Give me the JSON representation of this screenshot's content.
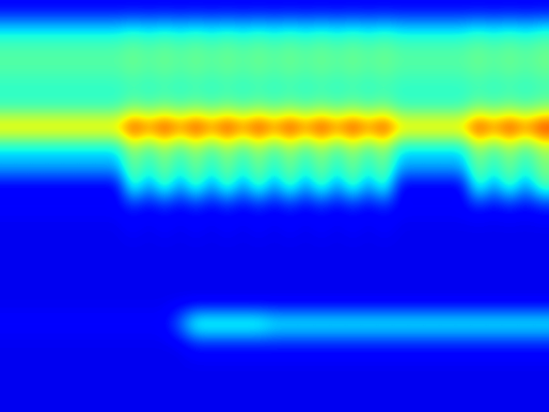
{
  "chart_data": {
    "type": "heatmap",
    "color": "jet",
    "tick_labels": false,
    "value_range": [
      0,
      1
    ],
    "cells": [
      [
        0.12,
        0.12,
        0.12,
        0.12,
        0.12,
        0.12,
        0.12,
        0.12,
        0.12,
        0.12,
        0.12,
        0.12,
        0.12,
        0.12,
        0.12,
        0.12,
        0.12,
        0.12,
        0.12,
        0.12,
        0.12,
        0.12,
        0.12,
        0.12,
        0.12,
        0.12,
        0.12,
        0.12,
        0.12,
        0.12,
        0.12,
        0.12,
        0.12,
        0.12,
        0.12
      ],
      [
        0.35,
        0.35,
        0.35,
        0.35,
        0.35,
        0.35,
        0.35,
        0.35,
        0.38,
        0.35,
        0.38,
        0.35,
        0.38,
        0.35,
        0.38,
        0.35,
        0.38,
        0.35,
        0.38,
        0.35,
        0.38,
        0.35,
        0.38,
        0.35,
        0.38,
        0.35,
        0.35,
        0.35,
        0.35,
        0.35,
        0.38,
        0.35,
        0.38,
        0.35,
        0.38
      ],
      [
        0.45,
        0.45,
        0.45,
        0.45,
        0.45,
        0.45,
        0.45,
        0.45,
        0.48,
        0.45,
        0.48,
        0.45,
        0.48,
        0.45,
        0.48,
        0.45,
        0.48,
        0.45,
        0.48,
        0.45,
        0.48,
        0.45,
        0.48,
        0.45,
        0.48,
        0.45,
        0.45,
        0.45,
        0.45,
        0.45,
        0.48,
        0.45,
        0.48,
        0.45,
        0.48
      ],
      [
        0.45,
        0.45,
        0.45,
        0.45,
        0.45,
        0.45,
        0.45,
        0.45,
        0.48,
        0.45,
        0.48,
        0.45,
        0.48,
        0.45,
        0.48,
        0.45,
        0.48,
        0.45,
        0.48,
        0.45,
        0.48,
        0.45,
        0.48,
        0.45,
        0.48,
        0.45,
        0.45,
        0.45,
        0.45,
        0.45,
        0.48,
        0.45,
        0.48,
        0.45,
        0.48
      ],
      [
        0.4,
        0.4,
        0.4,
        0.4,
        0.4,
        0.4,
        0.4,
        0.4,
        0.42,
        0.4,
        0.42,
        0.4,
        0.42,
        0.4,
        0.42,
        0.4,
        0.42,
        0.4,
        0.42,
        0.4,
        0.42,
        0.4,
        0.42,
        0.4,
        0.42,
        0.4,
        0.4,
        0.4,
        0.4,
        0.4,
        0.42,
        0.4,
        0.42,
        0.4,
        0.42
      ],
      [
        0.42,
        0.42,
        0.42,
        0.42,
        0.42,
        0.42,
        0.42,
        0.42,
        0.5,
        0.45,
        0.5,
        0.45,
        0.5,
        0.45,
        0.5,
        0.45,
        0.5,
        0.45,
        0.5,
        0.45,
        0.5,
        0.45,
        0.5,
        0.45,
        0.5,
        0.42,
        0.42,
        0.42,
        0.42,
        0.42,
        0.5,
        0.45,
        0.5,
        0.45,
        0.5
      ],
      [
        0.72,
        0.72,
        0.72,
        0.72,
        0.72,
        0.72,
        0.72,
        0.72,
        0.92,
        0.8,
        0.92,
        0.8,
        0.92,
        0.8,
        0.92,
        0.8,
        0.92,
        0.8,
        0.92,
        0.8,
        0.92,
        0.8,
        0.92,
        0.8,
        0.92,
        0.72,
        0.72,
        0.72,
        0.72,
        0.72,
        0.92,
        0.8,
        0.92,
        0.8,
        0.92
      ],
      [
        0.35,
        0.35,
        0.35,
        0.35,
        0.35,
        0.35,
        0.35,
        0.35,
        0.55,
        0.42,
        0.55,
        0.42,
        0.55,
        0.42,
        0.55,
        0.42,
        0.55,
        0.42,
        0.55,
        0.42,
        0.55,
        0.42,
        0.55,
        0.42,
        0.55,
        0.35,
        0.35,
        0.35,
        0.35,
        0.35,
        0.55,
        0.42,
        0.55,
        0.42,
        0.55
      ],
      [
        0.3,
        0.3,
        0.3,
        0.3,
        0.3,
        0.3,
        0.3,
        0.3,
        0.5,
        0.38,
        0.5,
        0.38,
        0.5,
        0.38,
        0.5,
        0.38,
        0.5,
        0.38,
        0.5,
        0.38,
        0.5,
        0.38,
        0.5,
        0.38,
        0.5,
        0.3,
        0.3,
        0.3,
        0.3,
        0.3,
        0.5,
        0.38,
        0.5,
        0.38,
        0.5
      ],
      [
        0.1,
        0.1,
        0.1,
        0.1,
        0.1,
        0.1,
        0.1,
        0.1,
        0.45,
        0.25,
        0.45,
        0.25,
        0.45,
        0.25,
        0.45,
        0.25,
        0.45,
        0.25,
        0.45,
        0.25,
        0.45,
        0.25,
        0.45,
        0.25,
        0.45,
        0.1,
        0.1,
        0.1,
        0.1,
        0.1,
        0.45,
        0.25,
        0.45,
        0.25,
        0.45
      ],
      [
        0.12,
        0.12,
        0.12,
        0.12,
        0.12,
        0.12,
        0.12,
        0.12,
        0.15,
        0.12,
        0.15,
        0.12,
        0.15,
        0.12,
        0.15,
        0.12,
        0.15,
        0.12,
        0.15,
        0.12,
        0.15,
        0.12,
        0.15,
        0.12,
        0.15,
        0.12,
        0.12,
        0.12,
        0.12,
        0.12,
        0.15,
        0.12,
        0.15,
        0.12,
        0.15
      ],
      [
        0.1,
        0.1,
        0.1,
        0.1,
        0.1,
        0.1,
        0.1,
        0.1,
        0.12,
        0.1,
        0.12,
        0.1,
        0.12,
        0.1,
        0.12,
        0.1,
        0.12,
        0.1,
        0.12,
        0.1,
        0.12,
        0.1,
        0.12,
        0.1,
        0.12,
        0.1,
        0.1,
        0.1,
        0.1,
        0.1,
        0.1,
        0.1,
        0.1,
        0.1,
        0.1
      ],
      [
        0.1,
        0.1,
        0.1,
        0.1,
        0.1,
        0.1,
        0.1,
        0.1,
        0.1,
        0.1,
        0.1,
        0.1,
        0.1,
        0.1,
        0.1,
        0.1,
        0.1,
        0.1,
        0.1,
        0.1,
        0.1,
        0.1,
        0.1,
        0.1,
        0.1,
        0.1,
        0.1,
        0.1,
        0.1,
        0.1,
        0.1,
        0.1,
        0.1,
        0.1,
        0.1
      ],
      [
        0.1,
        0.1,
        0.1,
        0.1,
        0.1,
        0.1,
        0.1,
        0.1,
        0.1,
        0.1,
        0.1,
        0.1,
        0.1,
        0.1,
        0.1,
        0.1,
        0.1,
        0.1,
        0.1,
        0.1,
        0.1,
        0.1,
        0.1,
        0.1,
        0.1,
        0.1,
        0.1,
        0.1,
        0.1,
        0.1,
        0.1,
        0.1,
        0.1,
        0.1,
        0.1
      ],
      [
        0.1,
        0.1,
        0.1,
        0.1,
        0.1,
        0.1,
        0.1,
        0.1,
        0.1,
        0.1,
        0.1,
        0.1,
        0.1,
        0.1,
        0.1,
        0.1,
        0.1,
        0.1,
        0.1,
        0.1,
        0.1,
        0.1,
        0.1,
        0.1,
        0.1,
        0.1,
        0.1,
        0.1,
        0.1,
        0.1,
        0.1,
        0.1,
        0.1,
        0.1,
        0.1
      ],
      [
        0.1,
        0.1,
        0.1,
        0.1,
        0.1,
        0.1,
        0.1,
        0.1,
        0.1,
        0.1,
        0.1,
        0.1,
        0.1,
        0.1,
        0.1,
        0.1,
        0.1,
        0.1,
        0.1,
        0.1,
        0.1,
        0.1,
        0.1,
        0.1,
        0.1,
        0.1,
        0.1,
        0.1,
        0.1,
        0.1,
        0.1,
        0.1,
        0.1,
        0.1,
        0.1
      ],
      [
        0.12,
        0.12,
        0.12,
        0.12,
        0.12,
        0.12,
        0.12,
        0.12,
        0.12,
        0.12,
        0.12,
        0.25,
        0.45,
        0.45,
        0.45,
        0.45,
        0.45,
        0.4,
        0.4,
        0.4,
        0.4,
        0.4,
        0.4,
        0.4,
        0.4,
        0.4,
        0.4,
        0.4,
        0.4,
        0.4,
        0.4,
        0.4,
        0.4,
        0.4,
        0.4
      ],
      [
        0.1,
        0.1,
        0.1,
        0.1,
        0.1,
        0.1,
        0.1,
        0.1,
        0.1,
        0.1,
        0.1,
        0.1,
        0.15,
        0.15,
        0.15,
        0.15,
        0.15,
        0.15,
        0.15,
        0.15,
        0.15,
        0.15,
        0.15,
        0.15,
        0.15,
        0.15,
        0.15,
        0.15,
        0.15,
        0.15,
        0.15,
        0.15,
        0.15,
        0.15,
        0.15
      ],
      [
        0.1,
        0.1,
        0.1,
        0.1,
        0.1,
        0.1,
        0.1,
        0.1,
        0.1,
        0.1,
        0.1,
        0.1,
        0.1,
        0.1,
        0.1,
        0.1,
        0.1,
        0.1,
        0.1,
        0.1,
        0.1,
        0.1,
        0.1,
        0.1,
        0.1,
        0.1,
        0.1,
        0.1,
        0.1,
        0.1,
        0.1,
        0.1,
        0.1,
        0.1,
        0.1
      ],
      [
        0.1,
        0.1,
        0.1,
        0.1,
        0.1,
        0.1,
        0.1,
        0.1,
        0.1,
        0.1,
        0.1,
        0.1,
        0.1,
        0.1,
        0.1,
        0.1,
        0.1,
        0.1,
        0.1,
        0.1,
        0.1,
        0.1,
        0.1,
        0.1,
        0.1,
        0.1,
        0.1,
        0.1,
        0.1,
        0.1,
        0.1,
        0.1,
        0.1,
        0.1,
        0.1
      ],
      [
        0.1,
        0.1,
        0.1,
        0.1,
        0.1,
        0.1,
        0.1,
        0.1,
        0.1,
        0.1,
        0.1,
        0.1,
        0.1,
        0.1,
        0.1,
        0.1,
        0.1,
        0.1,
        0.1,
        0.1,
        0.1,
        0.1,
        0.1,
        0.1,
        0.1,
        0.1,
        0.1,
        0.1,
        0.1,
        0.1,
        0.1,
        0.1,
        0.1,
        0.1,
        0.1
      ]
    ]
  }
}
